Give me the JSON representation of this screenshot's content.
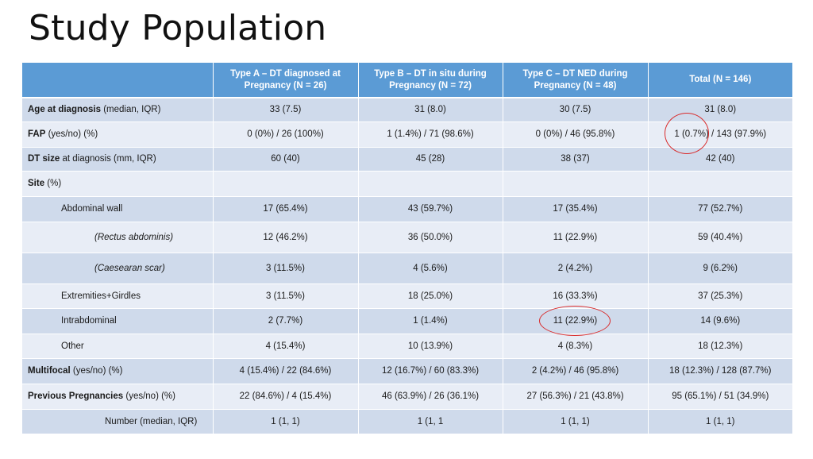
{
  "slide": {
    "title": "Study Population"
  },
  "table": {
    "headers": [
      "",
      "Type A – DT diagnosed at Pregnancy (N = 26)",
      "Type B – DT in situ during Pregnancy (N = 72)",
      "Type C – DT NED during Pregnancy (N = 48)",
      "Total (N = 146)"
    ],
    "rows": [
      {
        "label_bold": "Age at diagnosis",
        "label_rest": " (median, IQR)",
        "cells": [
          "33 (7.5)",
          "31 (8.0)",
          "30 (7.5)",
          "31 (8.0)"
        ]
      },
      {
        "label_bold": "FAP",
        "label_rest": " (yes/no) (%)",
        "cells": [
          "0 (0%) / 26 (100%)",
          "1 (1.4%) / 71 (98.6%)",
          "0 (0%) / 46 (95.8%)",
          "1 (0.7%) / 143 (97.9%)"
        ]
      },
      {
        "label_bold": "DT size",
        "label_rest": " at diagnosis (mm, IQR)",
        "cells": [
          "60 (40)",
          "45 (28)",
          "38 (37)",
          "42 (40)"
        ]
      },
      {
        "label_bold": "Site",
        "label_rest": " (%)",
        "cells": [
          "",
          "",
          "",
          ""
        ]
      },
      {
        "label": "Abdominal wall",
        "cells": [
          "17 (65.4%)",
          "43 (59.7%)",
          "17 (35.4%)",
          "77 (52.7%)"
        ]
      },
      {
        "label": "(Rectus abdominis)",
        "cells": [
          "12 (46.2%)",
          "36 (50.0%)",
          "11 (22.9%)",
          "59 (40.4%)"
        ]
      },
      {
        "label": "(Caesearan scar)",
        "cells": [
          "3 (11.5%)",
          "4 (5.6%)",
          "2 (4.2%)",
          "9 (6.2%)"
        ]
      },
      {
        "label": "Extremities+Girdles",
        "cells": [
          "3 (11.5%)",
          "18 (25.0%)",
          "16 (33.3%)",
          "37 (25.3%)"
        ]
      },
      {
        "label": "Intrabdominal",
        "cells": [
          "2 (7.7%)",
          "1 (1.4%)",
          "11 (22.9%)",
          "14 (9.6%)"
        ]
      },
      {
        "label": "Other",
        "cells": [
          "4 (15.4%)",
          "10 (13.9%)",
          "4 (8.3%)",
          "18 (12.3%)"
        ]
      },
      {
        "label_bold": "Multifocal",
        "label_rest": " (yes/no) (%)",
        "cells": [
          "4 (15.4%) / 22 (84.6%)",
          "12 (16.7%) / 60 (83.3%)",
          "2 (4.2%) / 46 (95.8%)",
          "18 (12.3%) / 128 (87.7%)"
        ]
      },
      {
        "label_bold": "Previous Pregnancies",
        "label_rest": " (yes/no) (%)",
        "cells": [
          "22 (84.6%) / 4 (15.4%)",
          "46 (63.9%) / 26 (36.1%)",
          "27 (56.3%) / 21 (43.8%)",
          "95 (65.1%) / 51 (34.9%)"
        ]
      },
      {
        "label": "Number (median, IQR)",
        "cells": [
          "1 (1, 1)",
          "1 (1, 1",
          "1 (1, 1)",
          "1 (1, 1)"
        ]
      }
    ]
  },
  "annotation": {
    "color": "#d92b2b"
  }
}
